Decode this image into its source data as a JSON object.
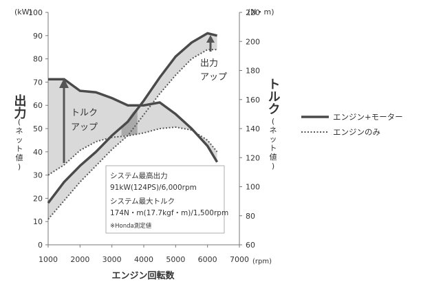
{
  "chart_data": {
    "type": "line",
    "x_unit": "(rpm)",
    "x_ticks": [
      1000,
      2000,
      3000,
      4000,
      5000,
      6000,
      7000
    ],
    "xlim": [
      1000,
      7000
    ],
    "xlabel": "エンジン回転数",
    "y_left": {
      "title": "出力",
      "subtitle_chars": [
        "(",
        "ネ",
        "ッ",
        "ト",
        "値",
        ")"
      ],
      "unit": "(kW)",
      "ticks": [
        0,
        10,
        20,
        30,
        40,
        50,
        60,
        70,
        80,
        90,
        100
      ],
      "range": [
        0,
        100
      ]
    },
    "y_right": {
      "title": "トルク",
      "subtitle_chars": [
        "(",
        "ネ",
        "ッ",
        "ト",
        "値",
        ")"
      ],
      "unit": "(N・m)",
      "ticks": [
        60,
        80,
        100,
        120,
        140,
        160,
        180,
        200,
        220
      ],
      "range": [
        60,
        220
      ]
    },
    "legend": [
      "エンジン+モーター",
      "エンジンのみ"
    ],
    "series": [
      {
        "name": "エンジン+モーター",
        "quantity": "torque",
        "axis": "right",
        "x": [
          1000,
          1500,
          2000,
          2500,
          3000,
          3500,
          4000,
          4500,
          5000,
          5500,
          6000,
          6300
        ],
        "y": [
          174,
          174,
          166,
          165,
          161,
          156,
          156,
          158,
          150,
          140,
          128,
          117
        ]
      },
      {
        "name": "エンジンのみ",
        "quantity": "torque",
        "axis": "right",
        "x": [
          1000,
          1500,
          2000,
          2500,
          3000,
          3500,
          4000,
          4500,
          5000,
          5500,
          6000,
          6300
        ],
        "y": [
          108,
          115,
          125,
          131,
          134,
          135,
          137,
          140,
          141,
          139,
          132,
          124
        ]
      },
      {
        "name": "エンジン+モーター",
        "quantity": "power",
        "axis": "left",
        "x": [
          1000,
          1500,
          2000,
          2500,
          3000,
          3500,
          4000,
          4500,
          5000,
          5500,
          6000,
          6300
        ],
        "y": [
          18,
          27,
          34,
          40,
          47,
          53,
          62,
          72,
          81,
          87,
          91,
          90
        ]
      },
      {
        "name": "エンジンのみ",
        "quantity": "power",
        "axis": "left",
        "x": [
          1000,
          1500,
          2000,
          2500,
          3000,
          3500,
          4000,
          4500,
          5000,
          5500,
          6000,
          6300
        ],
        "y": [
          11,
          19,
          27,
          34,
          41,
          47,
          56,
          65,
          73,
          80,
          84,
          84
        ]
      }
    ],
    "annotations": {
      "torque_up": [
        "トルク",
        "アップ"
      ],
      "power_up": [
        "出力",
        "アップ"
      ]
    },
    "spec_box": {
      "line1": "システム最高出力",
      "line2": "91kW(124PS)/6,000rpm",
      "line3": "システム最大トルク",
      "line4": "174N・m(17.7kgf・m)/1,500rpm",
      "note": "※Honda測定値"
    },
    "colors": {
      "system": "#4a4a4a",
      "engine": "#555555",
      "fill": "#d9d9d9",
      "overlap": "#9a9a9a"
    }
  }
}
